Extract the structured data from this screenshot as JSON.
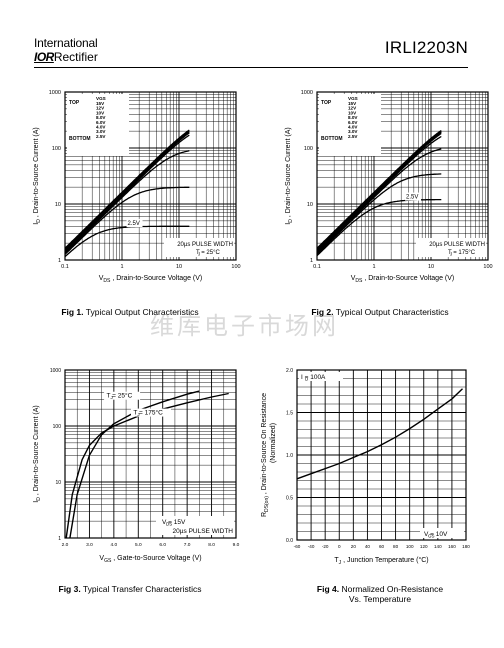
{
  "header": {
    "brand_line1": "International",
    "brand_ior": "IOR",
    "brand_line2": "Rectifier",
    "part_number": "IRLI2203N"
  },
  "watermark": "维库电子市场网",
  "figures": [
    {
      "caption_bold": "Fig 1.",
      "caption": "Typical Output Characteristics",
      "chart_data": {
        "type": "line",
        "xscale": "log",
        "yscale": "log",
        "xlim": [
          0.1,
          100
        ],
        "ylim": [
          1,
          1000
        ],
        "xticks": [
          "0.1",
          "1",
          "10",
          "100"
        ],
        "yticks": [
          "1",
          "10",
          "100",
          "1000"
        ],
        "xlabel_main": "V",
        "xlabel_sub": "DS",
        "xlabel_rest": " , Drain-to-Source Voltage (V)",
        "ylabel_main": "I",
        "ylabel_sub": "D",
        "ylabel_rest": " , Drain-to-Source Current (A)",
        "legend_top": "TOP",
        "legend_bottom": "BOTTOM",
        "legend_header": "VGS",
        "legend_values": [
          "15V",
          "12V",
          "10V",
          "8.0V",
          "6.0V",
          "4.0V",
          "3.0V",
          "2.5V"
        ],
        "annotation": "2.5V",
        "note1": "20µs PULSE WIDTH",
        "note2": "T  = 25°C",
        "note2_sub": "J",
        "series": [
          {
            "name": "2.5V",
            "sat": 4
          },
          {
            "name": "3.0V",
            "sat": 20
          },
          {
            "name": "4.0V",
            "sat": 100
          },
          {
            "name": "6.0V",
            "sat": 290
          },
          {
            "name": "8.0V",
            "sat": 360
          },
          {
            "name": "10V",
            "sat": 380
          },
          {
            "name": "12V",
            "sat": 390
          },
          {
            "name": "15V",
            "sat": 400
          }
        ]
      }
    },
    {
      "caption_bold": "Fig 2.",
      "caption": "Typical Output Characteristics",
      "chart_data": {
        "type": "line",
        "xscale": "log",
        "yscale": "log",
        "xlim": [
          0.1,
          100
        ],
        "ylim": [
          1,
          1000
        ],
        "xticks": [
          "0.1",
          "1",
          "10",
          "100"
        ],
        "yticks": [
          "1",
          "10",
          "100",
          "1000"
        ],
        "xlabel_main": "V",
        "xlabel_sub": "DS",
        "xlabel_rest": " , Drain-to-Source Voltage (V)",
        "ylabel_main": "I",
        "ylabel_sub": "D",
        "ylabel_rest": " , Drain-to-Source Current (A)",
        "legend_top": "TOP",
        "legend_bottom": "BOTTOM",
        "legend_header": "VGS",
        "legend_values": [
          "15V",
          "12V",
          "10V",
          "8.0V",
          "6.0V",
          "4.0V",
          "3.0V",
          "2.5V"
        ],
        "annotation": "2.5V",
        "note1": "20µs PULSE WIDTH",
        "note2": "T  = 175°C",
        "note2_sub": "J",
        "series": [
          {
            "name": "2.5V",
            "sat": 12
          },
          {
            "name": "3.0V",
            "sat": 35
          },
          {
            "name": "4.0V",
            "sat": 110
          },
          {
            "name": "6.0V",
            "sat": 250
          },
          {
            "name": "8.0V",
            "sat": 330
          },
          {
            "name": "10V",
            "sat": 350
          },
          {
            "name": "12V",
            "sat": 365
          },
          {
            "name": "15V",
            "sat": 375
          }
        ]
      }
    },
    {
      "caption_bold": "Fig 3.",
      "caption": "Typical Transfer Characteristics",
      "chart_data": {
        "type": "line",
        "xscale": "linear",
        "yscale": "log",
        "xlim": [
          2.0,
          9.0
        ],
        "ylim": [
          1,
          1000
        ],
        "xticks": [
          "2.0",
          "3.0",
          "4.0",
          "5.0",
          "6.0",
          "7.0",
          "8.0",
          "9.0"
        ],
        "yticks": [
          "1",
          "10",
          "100",
          "1000"
        ],
        "xlabel_main": "V",
        "xlabel_sub": "GS",
        "xlabel_rest": " , Gate-to-Source Voltage (V)",
        "ylabel_main": "I",
        "ylabel_sub": "D",
        "ylabel_rest": " , Drain-to-Source Current (A)",
        "label_25": "T  = 25°C",
        "label_175": "T  = 175°C",
        "label_sub": "J",
        "note1": "V   = 15V",
        "note1_sub": "DS",
        "note2": "20µs PULSE WIDTH",
        "series": [
          {
            "name": "25C",
            "x": [
              2.2,
              2.5,
              3.0,
              3.5,
              4.0,
              5.0,
              6.0,
              7.0,
              7.5
            ],
            "y": [
              1,
              6,
              30,
              70,
              110,
              190,
              270,
              370,
              420
            ]
          },
          {
            "name": "175C",
            "x": [
              2.05,
              2.3,
              2.7,
              3.0,
              3.5,
              4.0,
              5.0,
              6.0,
              7.0,
              8.0,
              8.7
            ],
            "y": [
              1,
              6,
              25,
              45,
              75,
              100,
              150,
              200,
              260,
              330,
              380
            ]
          }
        ]
      }
    },
    {
      "caption_bold": "Fig 4.",
      "caption": "Normalized On-Resistance",
      "caption2": "Vs. Temperature",
      "chart_data": {
        "type": "line",
        "xscale": "linear",
        "yscale": "linear",
        "xlim": [
          -60,
          180
        ],
        "ylim": [
          0.0,
          2.0
        ],
        "xticks": [
          "-60",
          "-40",
          "-20",
          "0",
          "20",
          "40",
          "60",
          "80",
          "100",
          "120",
          "140",
          "160",
          "180"
        ],
        "yticks": [
          "0.0",
          "0.5",
          "1.0",
          "1.5",
          "2.0"
        ],
        "xlabel_main": "T",
        "xlabel_sub": "J",
        "xlabel_rest": " , Junction Temperature (°C)",
        "ylabel_main": "R",
        "ylabel_sub": "DS(on)",
        "ylabel_rest": " ,  Drain-to-Source On Resistance",
        "ylabel_line2": "(Normalized)",
        "note_top": "I  = 100A",
        "note_top_sub": "D",
        "note_bottom": "V   = 10V",
        "note_bottom_sub": "GS",
        "series": [
          {
            "name": "RDS",
            "x": [
              -60,
              -40,
              -20,
              0,
              20,
              40,
              60,
              80,
              100,
              120,
              140,
              160,
              175
            ],
            "y": [
              0.72,
              0.78,
              0.84,
              0.9,
              0.97,
              1.04,
              1.12,
              1.21,
              1.31,
              1.42,
              1.54,
              1.66,
              1.78
            ]
          }
        ]
      }
    }
  ]
}
